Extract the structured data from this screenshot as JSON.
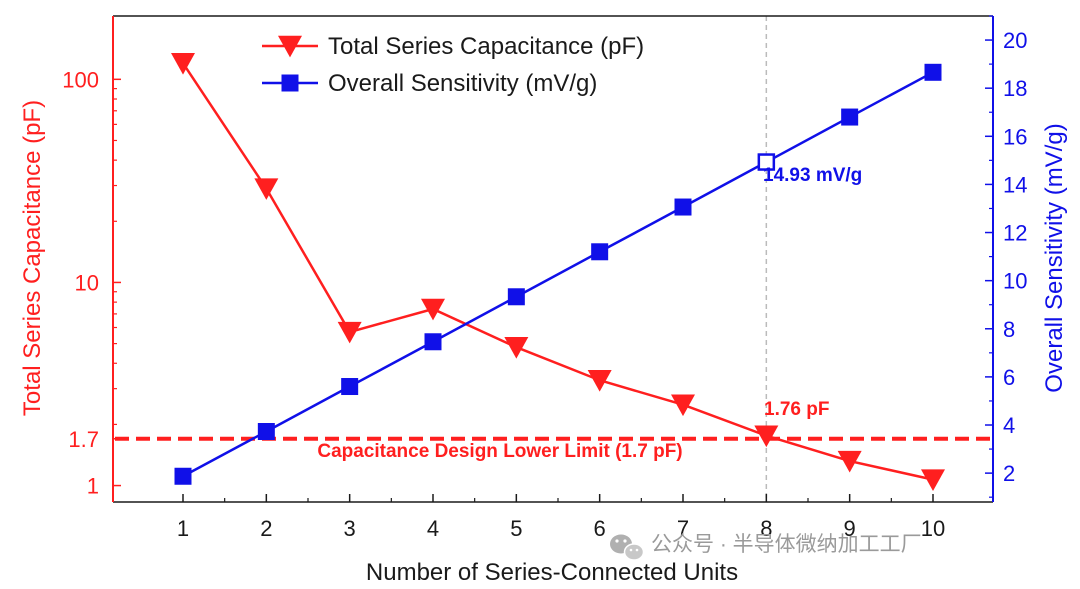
{
  "chart_data": {
    "type": "line",
    "x_axis": {
      "label": "Number of Series-Connected Units",
      "ticks": [
        1,
        2,
        3,
        4,
        5,
        6,
        7,
        8,
        9,
        10
      ],
      "range": [
        0.16,
        10.72
      ]
    },
    "left_axis": {
      "label": "Total Series Capacitance (pF)",
      "scale": "log",
      "range": [
        0.83,
        205
      ],
      "tick_values": [
        1,
        1.7,
        10,
        100
      ],
      "tick_labels": [
        "1",
        "1.7",
        "10",
        "100"
      ],
      "color": "#ff1f1f"
    },
    "right_axis": {
      "label": "Overall Sensitivity (mV/g)",
      "scale": "linear",
      "range": [
        0.8,
        21
      ],
      "tick_values": [
        2,
        4,
        6,
        8,
        10,
        12,
        14,
        16,
        18,
        20
      ],
      "tick_labels": [
        "2",
        "4",
        "6",
        "8",
        "10",
        "12",
        "14",
        "16",
        "18",
        "20"
      ],
      "color": "#1010e8"
    },
    "series": [
      {
        "name": "Total Series Capacitance (pF)",
        "axis": "left",
        "marker": "triangle-down",
        "color": "#ff1f1f",
        "x": [
          1,
          2,
          3,
          4,
          5,
          6,
          7,
          8,
          9,
          10
        ],
        "values": [
          120,
          29,
          5.7,
          7.4,
          4.8,
          3.3,
          2.5,
          1.76,
          1.32,
          1.07
        ]
      },
      {
        "name": "Overall Sensitivity (mV/g)",
        "axis": "right",
        "marker": "square",
        "color": "#1010e8",
        "x": [
          1,
          2,
          3,
          4,
          5,
          6,
          7,
          8,
          9,
          10
        ],
        "values": [
          1.87,
          3.73,
          5.6,
          7.46,
          9.33,
          11.2,
          13.06,
          14.93,
          16.8,
          18.66
        ]
      }
    ],
    "reference_lines": [
      {
        "axis": "left",
        "value": 1.7,
        "label": "Capacitance Design Lower Limit (1.7 pF)",
        "color": "#ff1f1f",
        "style": "dashed"
      },
      {
        "axis": "x",
        "value": 8,
        "color": "#bbbbbb",
        "style": "dashed"
      }
    ],
    "annotations": [
      {
        "text": "14.93 mV/g",
        "series": "Overall Sensitivity (mV/g)",
        "x": 8,
        "color": "#1010e8"
      },
      {
        "text": "1.76 pF",
        "series": "Total Series Capacitance (pF)",
        "x": 8,
        "color": "#ff1f1f"
      }
    ],
    "legend_position": "top-center"
  },
  "watermark": {
    "text": "公众号 · 半导体微纳加工工厂",
    "icon": "wechat-icon"
  }
}
